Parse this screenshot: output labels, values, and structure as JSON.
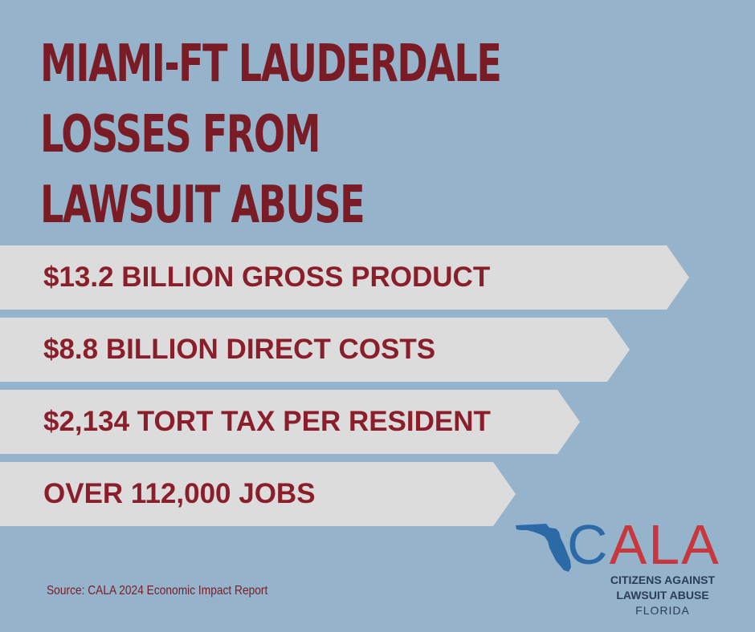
{
  "title": {
    "lines": [
      "MIAMI-FT LAUDERDALE",
      "LOSSES FROM",
      "LAWSUIT ABUSE"
    ]
  },
  "banners": [
    {
      "text": "$13.2 BILLION GROSS PRODUCT"
    },
    {
      "text": "$8.8 BILLION DIRECT COSTS"
    },
    {
      "text": "$2,134 TORT TAX PER RESIDENT"
    },
    {
      "text": "OVER 112,000 JOBS"
    }
  ],
  "source": "Source: CALA 2024 Economic Impact Report",
  "logo": {
    "acronym_first": "C",
    "acronym_rest": "ALA",
    "line1": "CITIZENS AGAINST",
    "line2": "LAWSUIT ABUSE",
    "state": "FLORIDA"
  },
  "colors": {
    "background": "#95b4cb",
    "title": "#7a1c26",
    "banner": "#dcdcdc",
    "banner_text": "#8a1f2b",
    "logo_blue": "#2b6aa6",
    "logo_red": "#c8373d"
  }
}
